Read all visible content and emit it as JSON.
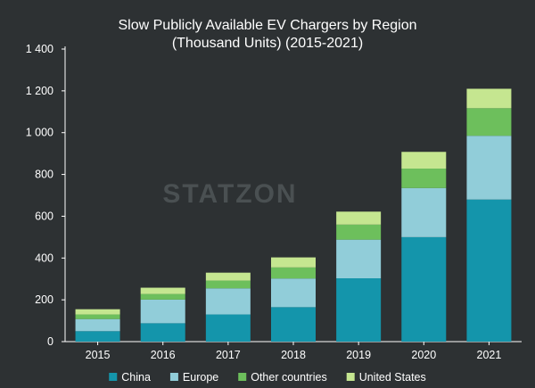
{
  "chart_data": {
    "type": "bar",
    "stacked": true,
    "title": "Slow Publicly Available EV Chargers by Region",
    "subtitle": "(Thousand Units) (2015-2021)",
    "xlabel": "",
    "ylabel": "",
    "categories": [
      "2015",
      "2016",
      "2017",
      "2018",
      "2019",
      "2020",
      "2021"
    ],
    "series": [
      {
        "name": "China",
        "color": "#1495ab",
        "values": [
          50,
          88,
          130,
          165,
          303,
          500,
          680
        ]
      },
      {
        "name": "Europe",
        "color": "#91cdd9",
        "values": [
          58,
          113,
          125,
          137,
          185,
          235,
          305
        ]
      },
      {
        "name": "Other countries",
        "color": "#6dbf5c",
        "values": [
          22,
          27,
          37,
          53,
          72,
          93,
          132
        ]
      },
      {
        "name": "United States",
        "color": "#c5e690",
        "values": [
          25,
          30,
          38,
          48,
          62,
          80,
          93
        ]
      }
    ],
    "ylim": [
      0,
      1400
    ],
    "yticks": [
      0,
      200,
      400,
      600,
      800,
      1000,
      1200,
      1400
    ],
    "ytick_labels": [
      "0",
      "200",
      "400",
      "600",
      "800",
      "1 000",
      "1 200",
      "1 400"
    ],
    "grid": false,
    "legend": "bottom"
  },
  "watermark": {
    "text": "STATZON"
  },
  "colors": {
    "background": "#2d3133",
    "text": "#ffffff",
    "axis": "#ffffff"
  }
}
